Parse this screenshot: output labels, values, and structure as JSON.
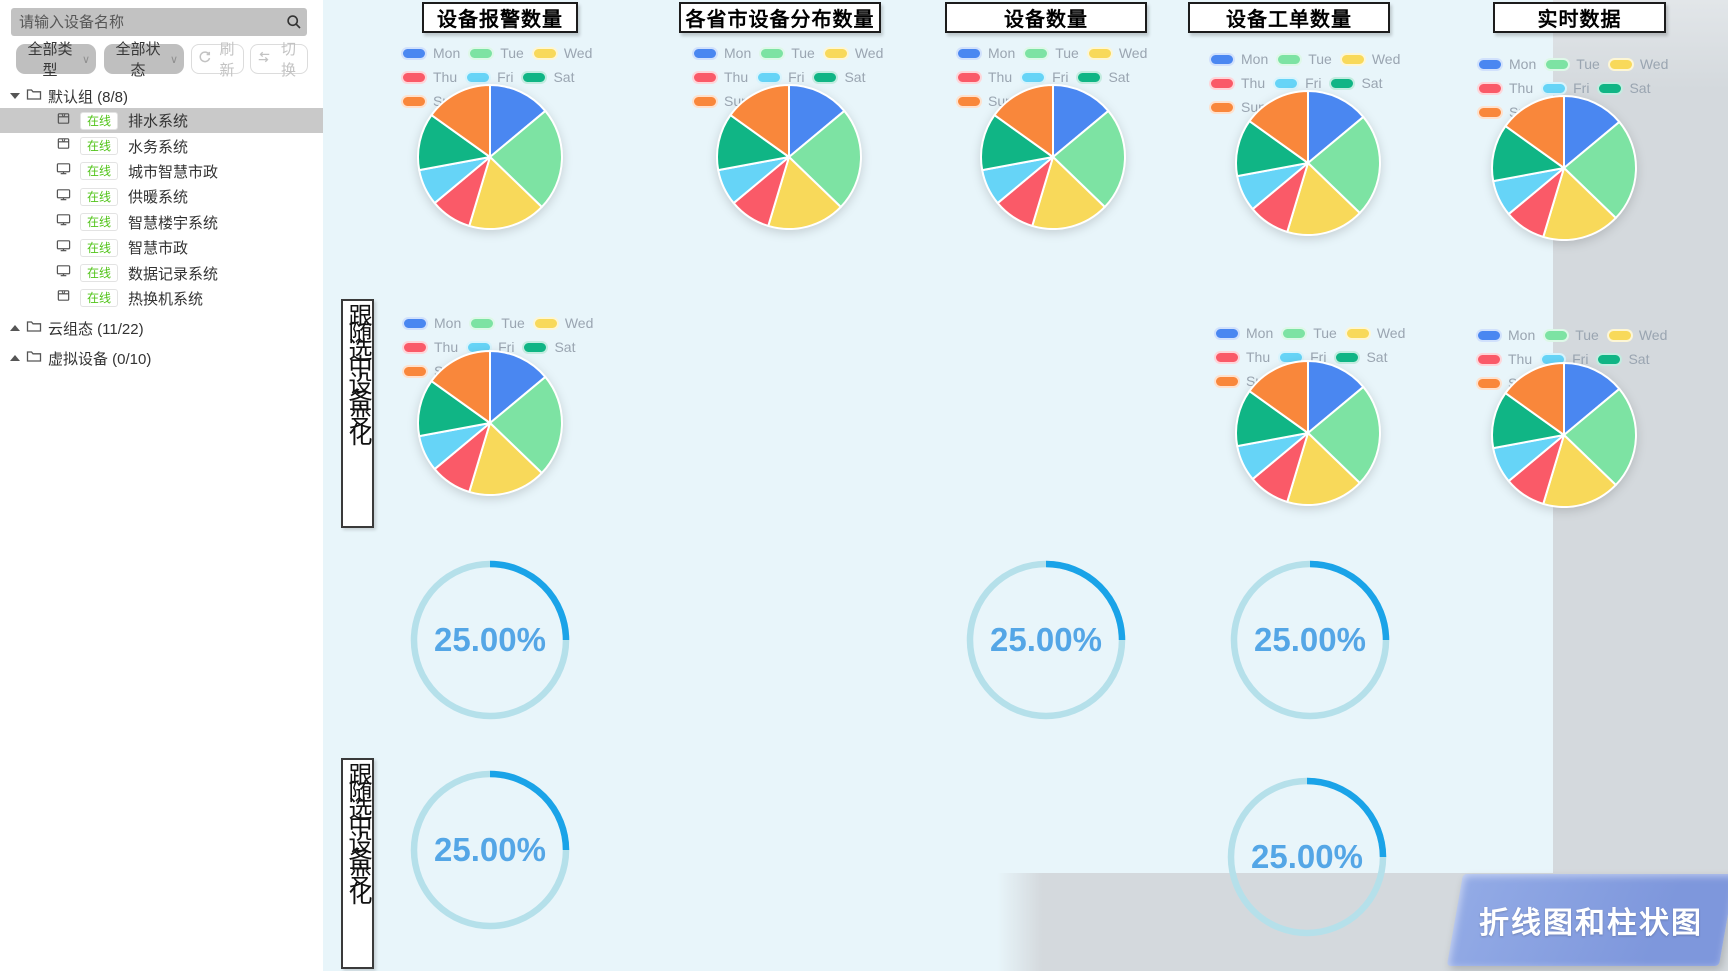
{
  "sidebar": {
    "search_placeholder": "请输入设备名称",
    "type_filter_label": "全部类型",
    "status_filter_label": "全部状态",
    "refresh_label": "刷新",
    "switch_label": "切换",
    "online_color": "#52c41a",
    "groups": [
      {
        "name": "默认组",
        "count_text": "(8/8)",
        "expanded": true,
        "items": [
          {
            "name": "排水系统",
            "status": "在线",
            "icon": "box-device-icon",
            "selected": true
          },
          {
            "name": "水务系统",
            "status": "在线",
            "icon": "box-device-icon",
            "selected": false
          },
          {
            "name": "城市智慧市政",
            "status": "在线",
            "icon": "monitor-device-icon",
            "selected": false
          },
          {
            "name": "供暖系统",
            "status": "在线",
            "icon": "monitor-device-icon",
            "selected": false
          },
          {
            "name": "智慧楼宇系统",
            "status": "在线",
            "icon": "monitor-device-icon",
            "selected": false
          },
          {
            "name": "智慧市政",
            "status": "在线",
            "icon": "monitor-device-icon",
            "selected": false
          },
          {
            "name": "数据记录系统",
            "status": "在线",
            "icon": "monitor-device-icon",
            "selected": false
          },
          {
            "name": "热换机系统",
            "status": "在线",
            "icon": "box-device-icon",
            "selected": false
          }
        ]
      },
      {
        "name": "云组态",
        "count_text": "(11/22)",
        "expanded": false,
        "items": []
      },
      {
        "name": "虚拟设备",
        "count_text": "(0/10)",
        "expanded": false,
        "items": []
      }
    ]
  },
  "main": {
    "panel_titles": [
      "设备报警数量",
      "各省市设备分布数量",
      "设备数量",
      "设备工单数量",
      "实时数据"
    ],
    "legend_labels": [
      "Mon",
      "Tue",
      "Wed",
      "Thu",
      "Fri",
      "Sat",
      "Sun"
    ],
    "follow_box_label": "跟随选中设备变化",
    "gauge_value_label": "25.00%",
    "banner_label": "折线图和柱状图",
    "colors": {
      "pie_palette": [
        "#4a87f1",
        "#7de3a3",
        "#f8d95a",
        "#fa5a68",
        "#66d4f7",
        "#10b585",
        "#f9873b"
      ],
      "gauge_track": "#b5e0ea",
      "gauge_fill": "#1aa3e8",
      "gauge_text": "#54a6e6",
      "banner_blue": "#7e97dc",
      "canvas_bg": "#e8f5fa",
      "side_panel_gray": "#d4d9dd",
      "legend_text": "#9aa5b1"
    }
  },
  "chart_data": [
    {
      "type": "pie",
      "categories": [
        "Mon",
        "Tue",
        "Wed",
        "Thu",
        "Fri",
        "Sat",
        "Sun"
      ],
      "values": [
        120,
        200,
        150,
        80,
        70,
        110,
        130
      ],
      "colors": [
        "#4a87f1",
        "#7de3a3",
        "#f8d95a",
        "#fa5a68",
        "#66d4f7",
        "#10b585",
        "#f9873b"
      ],
      "legend_position": "top",
      "instance_count": 8,
      "instances": [
        "设备报警数量",
        "各省市设备分布数量",
        "设备数量",
        "设备工单数量",
        "实时数据",
        "跟随选中设备变化-列1",
        "跟随选中设备变化-列4",
        "跟随选中设备变化-列5"
      ]
    },
    {
      "type": "gauge",
      "value": 25,
      "max": 100,
      "label": "25.00%",
      "instance_count": 5,
      "start_angle_deg": 0,
      "sweep": "clockwise-from-top"
    }
  ]
}
